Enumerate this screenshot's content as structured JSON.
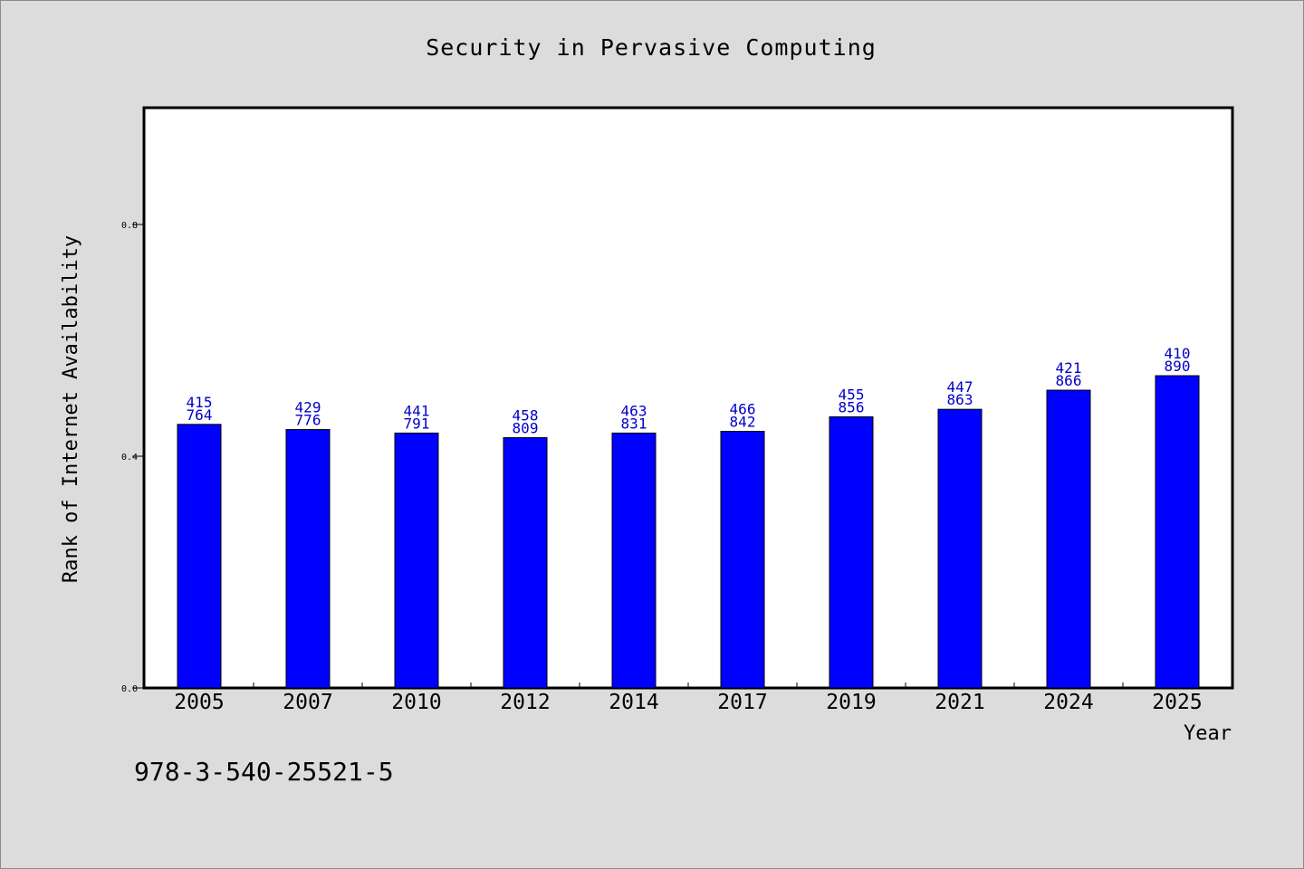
{
  "chart_data": {
    "type": "bar",
    "title": "Security in Pervasive Computing",
    "xlabel": "Year",
    "ylabel": "Rank of Internet Availability",
    "categories": [
      "2005",
      "2007",
      "2010",
      "2012",
      "2014",
      "2017",
      "2019",
      "2021",
      "2024",
      "2025"
    ],
    "values": [
      0.455,
      0.446,
      0.44,
      0.432,
      0.44,
      0.443,
      0.468,
      0.481,
      0.514,
      0.539
    ],
    "labels_top": [
      "415",
      "429",
      "441",
      "458",
      "463",
      "466",
      "455",
      "447",
      "421",
      "410"
    ],
    "labels_bottom": [
      "764",
      "776",
      "791",
      "809",
      "831",
      "842",
      "856",
      "863",
      "866",
      "890"
    ],
    "ylim": [
      0,
      1.0
    ],
    "yticks": [
      0.0,
      0.4,
      0.8
    ],
    "ytick_labels": [
      "0.0",
      "0.4",
      "0.8"
    ],
    "grid": false,
    "legend": "none",
    "bar_color": "#0000ff",
    "label_color": "#0000c8"
  },
  "footer": {
    "identifier": "978-3-540-25521-5"
  }
}
